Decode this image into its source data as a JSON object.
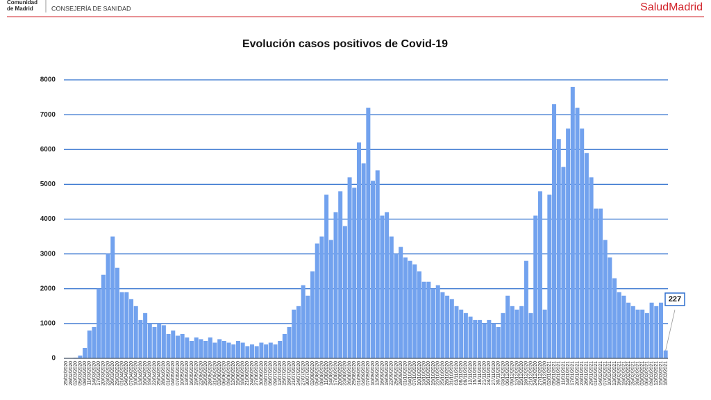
{
  "header": {
    "org_line1": "Comunidad",
    "org_line2": "de Madrid",
    "department": "CONSEJERÍA DE SANIDAD",
    "brand": "SaludMadrid"
  },
  "chart_data": {
    "type": "bar",
    "title": "Evolución casos positivos de Covid-19",
    "color": "#72a2ee",
    "grid": true,
    "ylim": [
      0,
      8000
    ],
    "yticks": [
      0,
      1000,
      2000,
      3000,
      4000,
      5000,
      6000,
      7000,
      8000
    ],
    "categories": [
      "25/02/2020",
      "28/02/2020",
      "02/03/2020",
      "05/03/2020",
      "08/03/2020",
      "11/03/2020",
      "14/03/2020",
      "17/03/2020",
      "20/03/2020",
      "23/03/2020",
      "26/03/2020",
      "29/03/2020",
      "01/04/2020",
      "04/04/2020",
      "07/04/2020",
      "10/04/2020",
      "13/04/2020",
      "16/04/2020",
      "19/04/2020",
      "22/04/2020",
      "25/04/2020",
      "28/04/2020",
      "01/05/2020",
      "04/05/2020",
      "07/05/2020",
      "10/05/2020",
      "13/05/2020",
      "16/05/2020",
      "19/05/2020",
      "22/05/2020",
      "25/05/2020",
      "28/05/2020",
      "31/05/2020",
      "03/06/2020",
      "06/06/2020",
      "09/06/2020",
      "12/06/2020",
      "15/06/2020",
      "18/06/2020",
      "21/06/2020",
      "24/06/2020",
      "27/06/2020",
      "30/06/2020",
      "03/07/2020",
      "06/07/2020",
      "09/07/2020",
      "12/07/2020",
      "15/07/2020",
      "18/07/2020",
      "21/07/2020",
      "24/07/2020",
      "27/07/2020",
      "30/07/2020",
      "02/08/2020",
      "05/08/2020",
      "08/08/2020",
      "11/08/2020",
      "14/08/2020",
      "17/08/2020",
      "20/08/2020",
      "23/08/2020",
      "26/08/2020",
      "29/08/2020",
      "01/09/2020",
      "04/09/2020",
      "07/09/2020",
      "10/09/2020",
      "13/09/2020",
      "16/09/2020",
      "19/09/2020",
      "22/09/2020",
      "25/09/2020",
      "28/09/2020",
      "01/10/2020",
      "04/10/2020",
      "07/10/2020",
      "10/10/2020",
      "13/10/2020",
      "16/10/2020",
      "19/10/2020",
      "22/10/2020",
      "25/10/2020",
      "28/10/2020",
      "31/10/2020",
      "03/11/2020",
      "06/11/2020",
      "09/11/2020",
      "12/11/2020",
      "15/11/2020",
      "18/11/2020",
      "21/11/2020",
      "24/11/2020",
      "27/11/2020",
      "30/11/2020",
      "03/12/2020",
      "06/12/2020",
      "09/12/2020",
      "12/12/2020",
      "15/12/2020",
      "18/12/2020",
      "21/12/2020",
      "24/12/2020",
      "27/12/2020",
      "30/12/2020",
      "02/01/2021",
      "05/01/2021",
      "08/01/2021",
      "11/01/2021",
      "14/01/2021",
      "17/01/2021",
      "20/01/2021",
      "23/01/2021",
      "26/01/2021",
      "29/01/2021",
      "01/02/2021",
      "04/02/2021",
      "07/02/2021",
      "10/02/2021",
      "13/02/2021",
      "16/02/2021",
      "19/02/2021",
      "22/02/2021",
      "25/02/2021",
      "28/02/2021",
      "03/03/2021",
      "06/03/2021",
      "09/03/2021",
      "12/03/2021",
      "15/03/2021",
      "18/03/2021"
    ],
    "values": [
      0,
      5,
      20,
      80,
      300,
      800,
      900,
      2000,
      2400,
      3000,
      3500,
      2600,
      1900,
      1900,
      1700,
      1500,
      1100,
      1300,
      1000,
      900,
      1000,
      950,
      700,
      800,
      650,
      700,
      600,
      500,
      600,
      550,
      500,
      600,
      450,
      550,
      500,
      450,
      400,
      500,
      450,
      350,
      400,
      350,
      450,
      400,
      450,
      400,
      500,
      700,
      900,
      1400,
      1500,
      2100,
      1800,
      2500,
      3300,
      3500,
      4700,
      3400,
      4200,
      4800,
      3800,
      5200,
      4900,
      6200,
      5600,
      7200,
      5100,
      5400,
      4100,
      4200,
      3500,
      3000,
      3200,
      2900,
      2800,
      2700,
      2500,
      2200,
      2200,
      2000,
      2100,
      1900,
      1800,
      1700,
      1500,
      1400,
      1300,
      1200,
      1100,
      1100,
      1000,
      1100,
      1000,
      900,
      1300,
      1800,
      1500,
      1400,
      1500,
      2800,
      1300,
      4100,
      4800,
      1400,
      4700,
      7300,
      6300,
      5500,
      6600,
      7800,
      7200,
      6600,
      5900,
      5200,
      4300,
      4300,
      3400,
      2900,
      2300,
      1900,
      1800,
      1600,
      1500,
      1400,
      1400,
      1300,
      1600,
      1500,
      1600,
      227
    ]
  }
}
